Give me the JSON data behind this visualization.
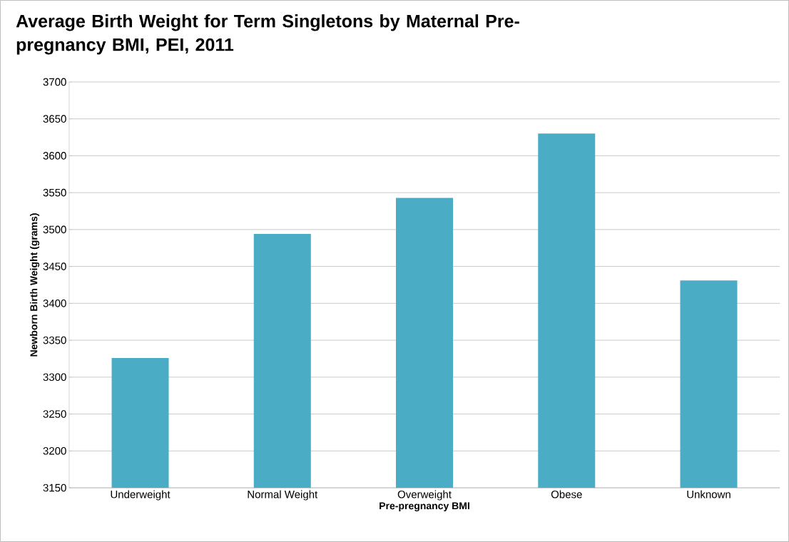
{
  "chart_data": {
    "type": "bar",
    "title": "Average Birth Weight for Term Singletons by Maternal Pre-pregnancy BMI, PEI, 2011",
    "xlabel": "Pre-pregnancy BMI",
    "ylabel": "Newborn Birth Weight (grams)",
    "categories": [
      "Underweight",
      "Normal Weight",
      "Overweight",
      "Obese",
      "Unknown"
    ],
    "values": [
      3326,
      3494,
      3543,
      3630,
      3431
    ],
    "color": "#4bacc6",
    "ylim": [
      3150,
      3700
    ],
    "yticks": [
      3150,
      3200,
      3250,
      3300,
      3350,
      3400,
      3450,
      3500,
      3550,
      3600,
      3650,
      3700
    ],
    "grid": "y"
  }
}
